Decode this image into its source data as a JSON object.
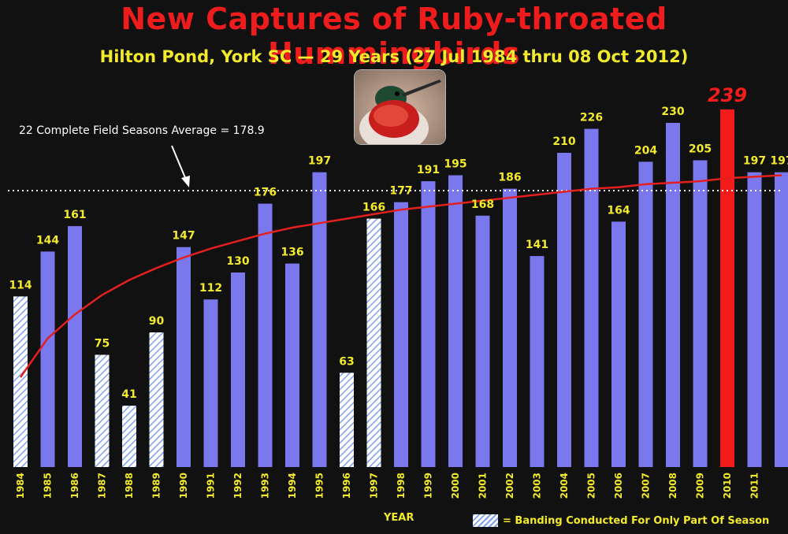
{
  "title": "New Captures of Ruby-throated Hummingbirds",
  "subtitle": "Hilton Pond, York SC  — 29 Years (27 Jul 1984 thru 08 Oct 2012)",
  "average_label": "22 Complete Field Seasons Average = 178.9",
  "legend_text": "= Banding Conducted For Only Part Of Season",
  "xaxis_title": "YEAR",
  "colors": {
    "background": "#111111",
    "bar": "#7b78ee",
    "partial_bar_stripe": "#7fa2ea",
    "highlight_bar": "#f41b1b",
    "trend_line": "#e41f1f",
    "label_text": "#f2ea2a",
    "highlight_label": "#f41b1b"
  },
  "chart_data": {
    "type": "bar",
    "title": "New Captures of Ruby-throated Hummingbirds",
    "subtitle": "Hilton Pond, York SC  — 29 Years (27 Jul 1984 thru 08 Oct 2012)",
    "xlabel": "YEAR",
    "ylabel": "",
    "ylim": [
      0,
      260
    ],
    "grid": false,
    "legend": "bottom-right",
    "categories": [
      "1984",
      "1985",
      "1986",
      "1987",
      "1988",
      "1989",
      "1990",
      "1991",
      "1992",
      "1993",
      "1994",
      "1995",
      "1996",
      "1997",
      "1998",
      "1999",
      "2000",
      "2001",
      "2002",
      "2003",
      "2004",
      "2005",
      "2006",
      "2007",
      "2008",
      "2009",
      "2010",
      "2011",
      ""
    ],
    "values": [
      114,
      144,
      161,
      75,
      41,
      90,
      147,
      112,
      130,
      176,
      136,
      197,
      63,
      166,
      177,
      191,
      195,
      168,
      186,
      141,
      210,
      226,
      164,
      204,
      230,
      205,
      239,
      197,
      197
    ],
    "value_labels": [
      "114",
      "144",
      "161",
      "75",
      "41",
      "90",
      "147",
      "112",
      "130",
      "176",
      "136",
      "197",
      "63",
      "166",
      "177",
      "191",
      "195",
      "168",
      "186",
      "141",
      "210",
      "226",
      "164",
      "204",
      "230",
      "205",
      "239",
      "197",
      "197"
    ],
    "partial_season": [
      true,
      false,
      false,
      true,
      true,
      true,
      false,
      false,
      false,
      false,
      false,
      false,
      true,
      true,
      false,
      false,
      false,
      false,
      false,
      false,
      false,
      false,
      false,
      false,
      false,
      false,
      false,
      false,
      false
    ],
    "highlight_index": 26,
    "average_line": 178.9,
    "trend_line": [
      60,
      86,
      102,
      115,
      125,
      133,
      140,
      146,
      151,
      156,
      160,
      163,
      166,
      169,
      172,
      174,
      176,
      178,
      180,
      182,
      184,
      186,
      187,
      189,
      190,
      191,
      193,
      194,
      195
    ]
  }
}
